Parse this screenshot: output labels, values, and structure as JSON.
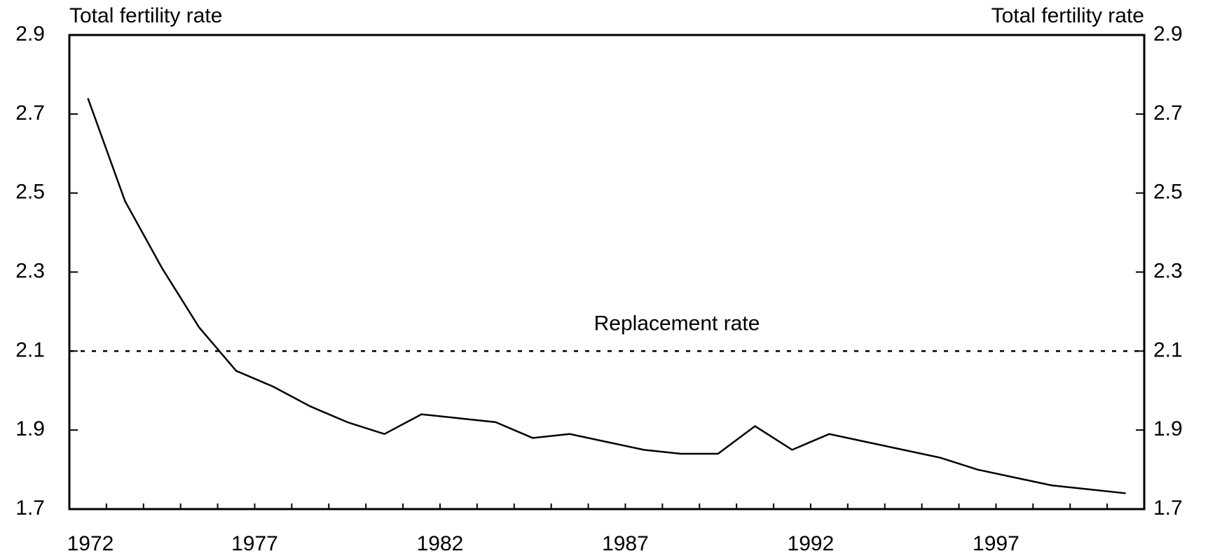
{
  "chart_data": {
    "type": "line",
    "ylabel": "Total fertility rate",
    "y2label": "Total fertility rate",
    "categories": [
      1972,
      null,
      null,
      null,
      null,
      1977,
      null,
      null,
      null,
      null,
      1982,
      null,
      null,
      null,
      null,
      1987,
      null,
      null,
      null,
      null,
      1992,
      null,
      null,
      null,
      null,
      1997,
      null,
      null,
      null
    ],
    "series": [
      {
        "name": "Total fertility rate",
        "color": "#000000",
        "values": [
          2.74,
          2.48,
          2.31,
          2.16,
          2.05,
          2.01,
          1.96,
          1.92,
          1.89,
          1.94,
          1.93,
          1.92,
          1.88,
          1.89,
          1.87,
          1.85,
          1.84,
          1.84,
          1.91,
          1.85,
          1.89,
          1.87,
          1.85,
          1.83,
          1.8,
          1.78,
          1.76,
          1.75,
          1.74
        ]
      }
    ],
    "reference_line": {
      "value": 2.1,
      "label": "Replacement rate"
    },
    "ylim": [
      1.7,
      2.9
    ],
    "yticks": [
      1.7,
      1.9,
      2.1,
      2.3,
      2.5,
      2.7,
      2.9
    ],
    "y2lim": [
      1.7,
      2.9
    ],
    "y2ticks": [
      1.7,
      1.9,
      2.1,
      2.3,
      2.5,
      2.7,
      2.9
    ]
  }
}
